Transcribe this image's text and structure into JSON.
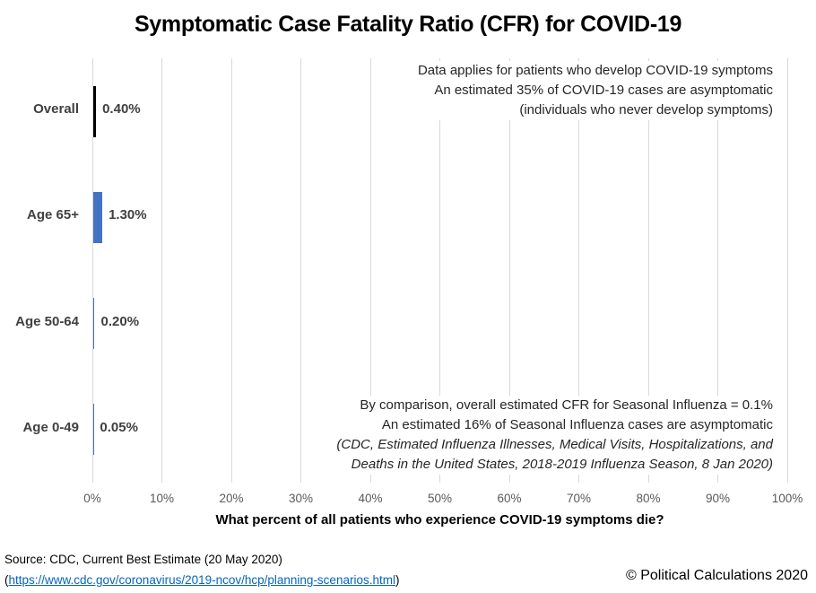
{
  "chart_data": {
    "type": "bar",
    "orientation": "horizontal",
    "title": "Symptomatic Case Fatality Ratio (CFR) for COVID-19",
    "xlabel": "What percent of all patients who experience COVID-19 symptoms die?",
    "ylabel": "",
    "xlim": [
      0,
      100
    ],
    "x_tick_labels": [
      "0%",
      "10%",
      "20%",
      "30%",
      "40%",
      "50%",
      "60%",
      "70%",
      "80%",
      "90%",
      "100%"
    ],
    "grid": true,
    "legend": false,
    "categories": [
      "Overall",
      "Age 65+",
      "Age 50-64",
      "Age 0-49"
    ],
    "values": [
      0.4,
      1.3,
      0.2,
      0.05
    ],
    "data_labels": [
      "0.40%",
      "1.30%",
      "0.20%",
      "0.05%"
    ],
    "bar_colors": [
      "#000000",
      "#4472C4",
      "#4472C4",
      "#4472C4"
    ]
  },
  "annotations": {
    "top": {
      "lines": [
        "Data applies for patients who develop COVID-19 symptoms",
        "An estimated 35% of COVID-19 cases are asymptomatic",
        "(individuals who never develop symptoms)"
      ]
    },
    "bottom": {
      "lines": [
        "By comparison, overall estimated CFR for Seasonal Influenza = 0.1%",
        "An estimated 16% of Seasonal Influenza cases are asymptomatic",
        "(CDC, Estimated Influenza Illnesses, Medical Visits, Hospitalizations, and",
        "Deaths in the United States, 2018-2019 Influenza Season, 8 Jan 2020)"
      ]
    }
  },
  "footer": {
    "source_line": "Source: CDC, Current Best Estimate (20 May 2020)",
    "link_prefix": "(",
    "source_link_text": "https://www.cdc.gov/coronavirus/2019-ncov/hcp/planning-scenarios.html",
    "link_suffix": ")",
    "copyright": "© Political Calculations 2020"
  },
  "colors": {
    "bar_blue": "#4472C4",
    "bar_black": "#000000",
    "gridline": "#d9d9d9",
    "tick_label": "#595959",
    "category_label": "#404040",
    "data_label": "#3f3f3f",
    "annotation_text": "#262626",
    "link": "#0563C1"
  }
}
